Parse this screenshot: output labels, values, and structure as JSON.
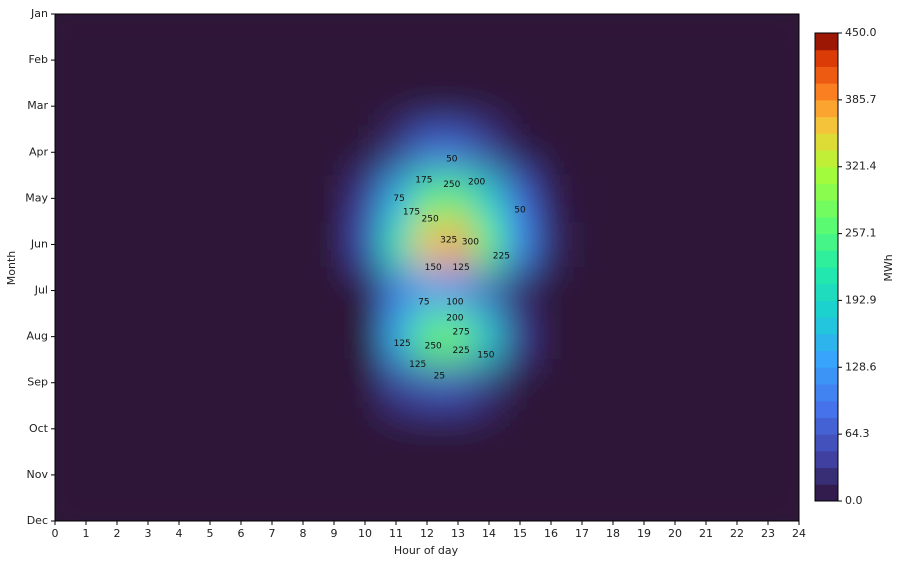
{
  "chart_data": {
    "type": "contour",
    "xlabel": "Hour of day",
    "ylabel": "Month",
    "colorbar_label": "MWh",
    "xlim": [
      0,
      24
    ],
    "xticks": [
      0,
      1,
      2,
      3,
      4,
      5,
      6,
      7,
      8,
      9,
      10,
      11,
      12,
      13,
      14,
      15,
      16,
      17,
      18,
      19,
      20,
      21,
      22,
      23,
      24
    ],
    "y_categories": [
      "Jan",
      "Feb",
      "Mar",
      "Apr",
      "May",
      "Jun",
      "Jul",
      "Aug",
      "Sep",
      "Oct",
      "Nov",
      "Dec"
    ],
    "x": [
      0,
      1,
      2,
      3,
      4,
      5,
      6,
      7,
      8,
      9,
      10,
      11,
      12,
      13,
      14,
      15,
      16,
      17,
      18,
      19,
      20,
      21,
      22,
      23,
      24
    ],
    "z": [
      [
        0,
        0,
        0,
        0,
        0,
        0,
        0,
        0,
        0,
        0,
        0,
        0,
        0,
        0,
        0,
        0,
        0,
        0,
        0,
        0,
        0,
        0,
        0,
        0,
        0
      ],
      [
        0,
        0,
        0,
        0,
        0,
        0,
        0,
        0,
        0,
        0,
        0,
        0,
        0,
        0,
        0,
        0,
        0,
        0,
        0,
        0,
        0,
        0,
        0,
        0,
        0
      ],
      [
        0,
        0,
        0,
        0,
        0,
        0,
        0,
        0,
        0,
        0,
        0,
        0,
        0,
        0,
        0,
        0,
        0,
        0,
        0,
        0,
        0,
        0,
        0,
        0,
        0
      ],
      [
        0,
        0,
        0,
        0,
        0,
        0,
        0,
        0,
        0,
        0,
        0,
        30,
        80,
        80,
        40,
        5,
        0,
        0,
        0,
        0,
        0,
        0,
        0,
        0,
        0
      ],
      [
        0,
        0,
        0,
        0,
        0,
        0,
        0,
        0,
        0,
        0,
        40,
        150,
        250,
        260,
        180,
        80,
        10,
        0,
        0,
        0,
        0,
        0,
        0,
        0,
        0
      ],
      [
        0,
        0,
        0,
        0,
        0,
        0,
        0,
        0,
        0,
        0,
        60,
        220,
        360,
        380,
        270,
        120,
        20,
        0,
        0,
        0,
        0,
        0,
        0,
        0,
        0
      ],
      [
        0,
        0,
        0,
        0,
        0,
        0,
        0,
        0,
        0,
        0,
        0,
        80,
        120,
        110,
        60,
        10,
        0,
        0,
        0,
        0,
        0,
        0,
        0,
        0,
        0
      ],
      [
        0,
        0,
        0,
        0,
        0,
        0,
        0,
        0,
        0,
        0,
        0,
        150,
        270,
        280,
        180,
        40,
        0,
        0,
        0,
        0,
        0,
        0,
        0,
        0,
        0
      ],
      [
        0,
        0,
        0,
        0,
        0,
        0,
        0,
        0,
        0,
        0,
        0,
        40,
        60,
        60,
        30,
        0,
        0,
        0,
        0,
        0,
        0,
        0,
        0,
        0,
        0
      ],
      [
        0,
        0,
        0,
        0,
        0,
        0,
        0,
        0,
        0,
        0,
        0,
        0,
        0,
        0,
        0,
        0,
        0,
        0,
        0,
        0,
        0,
        0,
        0,
        0,
        0
      ],
      [
        0,
        0,
        0,
        0,
        0,
        0,
        0,
        0,
        0,
        0,
        0,
        0,
        0,
        0,
        0,
        0,
        0,
        0,
        0,
        0,
        0,
        0,
        0,
        0,
        0
      ],
      [
        0,
        0,
        0,
        0,
        0,
        0,
        0,
        0,
        0,
        0,
        0,
        0,
        0,
        0,
        0,
        0,
        0,
        0,
        0,
        0,
        0,
        0,
        0,
        0,
        0
      ]
    ],
    "clim": [
      0,
      450
    ],
    "cticks": [
      {
        "value": 0,
        "label": "0.0"
      },
      64.3,
      128.6,
      192.9,
      257.1,
      321.4,
      385.7,
      {
        "value": 450,
        "label": "450.0"
      }
    ],
    "colormap": "turbo",
    "contour_labels": [
      {
        "x": 12.8,
        "y": 3.15,
        "value": 50
      },
      {
        "x": 11.9,
        "y": 3.6,
        "value": 175
      },
      {
        "x": 12.8,
        "y": 3.7,
        "value": 250
      },
      {
        "x": 13.6,
        "y": 3.65,
        "value": 200
      },
      {
        "x": 11.1,
        "y": 4.0,
        "value": 75
      },
      {
        "x": 11.5,
        "y": 4.3,
        "value": 175
      },
      {
        "x": 12.1,
        "y": 4.45,
        "value": 250
      },
      {
        "x": 15.0,
        "y": 4.25,
        "value": 50
      },
      {
        "x": 12.7,
        "y": 4.9,
        "value": 325
      },
      {
        "x": 13.4,
        "y": 4.95,
        "value": 300
      },
      {
        "x": 14.4,
        "y": 5.25,
        "value": 225
      },
      {
        "x": 12.2,
        "y": 5.5,
        "value": 150
      },
      {
        "x": 13.1,
        "y": 5.5,
        "value": 125
      },
      {
        "x": 11.9,
        "y": 6.25,
        "value": 75
      },
      {
        "x": 12.9,
        "y": 6.25,
        "value": 100
      },
      {
        "x": 12.9,
        "y": 6.6,
        "value": 200
      },
      {
        "x": 13.1,
        "y": 6.9,
        "value": 275
      },
      {
        "x": 11.2,
        "y": 7.15,
        "value": 125
      },
      {
        "x": 12.2,
        "y": 7.2,
        "value": 250
      },
      {
        "x": 13.1,
        "y": 7.3,
        "value": 225
      },
      {
        "x": 13.9,
        "y": 7.4,
        "value": 150
      },
      {
        "x": 11.7,
        "y": 7.6,
        "value": 125
      },
      {
        "x": 12.4,
        "y": 7.85,
        "value": 25
      }
    ]
  }
}
